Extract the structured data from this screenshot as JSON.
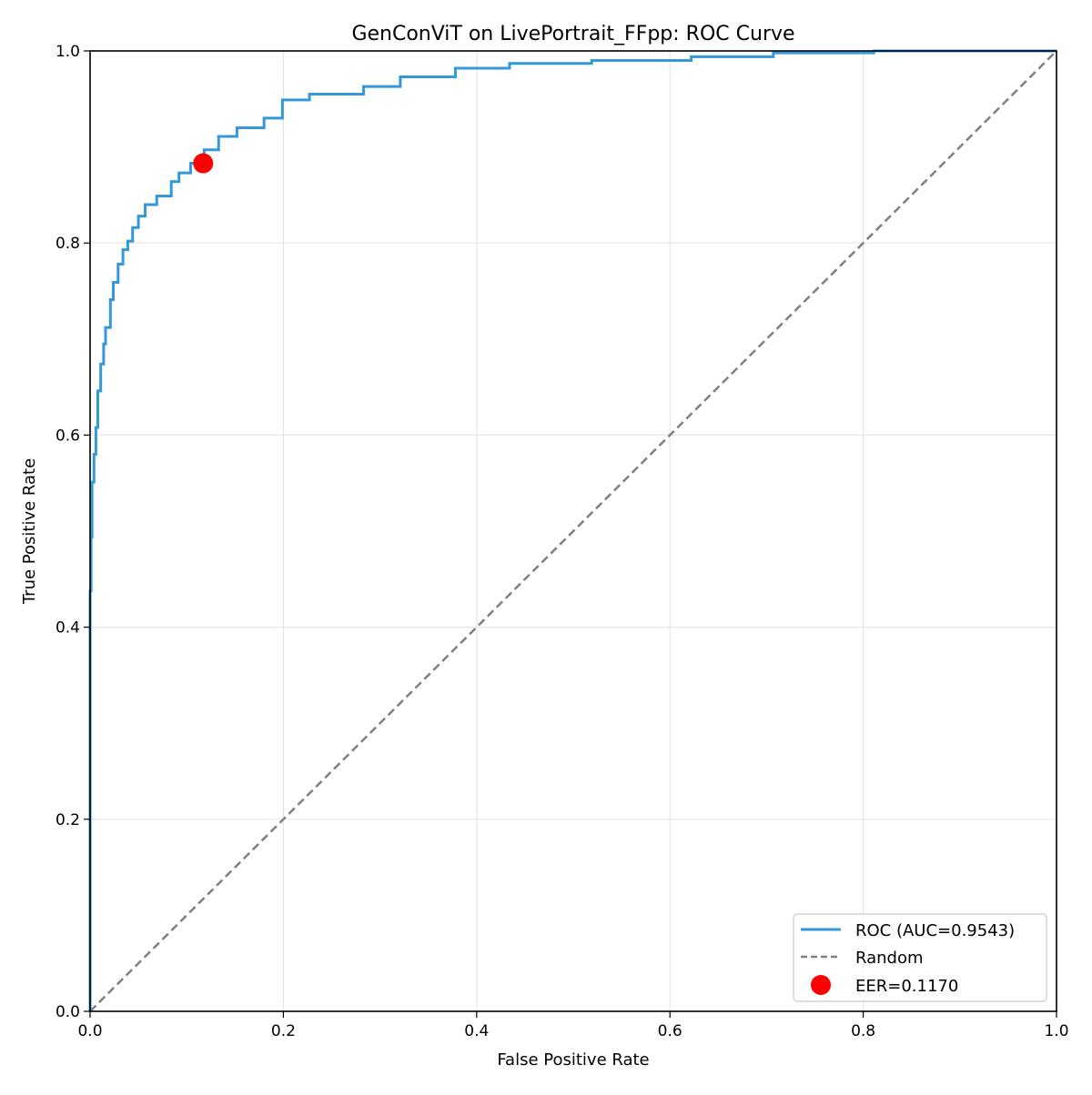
{
  "chart_data": {
    "type": "line",
    "title": "GenConViT on LivePortrait_FFpp: ROC Curve",
    "xlabel": "False Positive Rate",
    "ylabel": "True Positive Rate",
    "xlim": [
      0,
      1
    ],
    "ylim": [
      0,
      1
    ],
    "xticks": [
      "0.0",
      "0.2",
      "0.4",
      "0.6",
      "0.8",
      "1.0"
    ],
    "yticks": [
      "0.0",
      "0.2",
      "0.4",
      "0.6",
      "0.8",
      "1.0"
    ],
    "grid": true,
    "legend_position": "lower-right",
    "series": [
      {
        "name": "ROC (AUC=0.9543)",
        "style": "solid",
        "color": "#3498db",
        "x": [
          0,
          0.001,
          0.002,
          0.004,
          0.006,
          0.008,
          0.011,
          0.014,
          0.016,
          0.021,
          0.024,
          0.029,
          0.034,
          0.039,
          0.044,
          0.05,
          0.057,
          0.069,
          0.084,
          0.092,
          0.104,
          0.118,
          0.133,
          0.152,
          0.18,
          0.199,
          0.227,
          0.283,
          0.321,
          0.378,
          0.434,
          0.519,
          0.622,
          0.707,
          0.811,
          0.96,
          1.0
        ],
        "y": [
          0,
          0.4375,
          0.494,
          0.551,
          0.58,
          0.608,
          0.646,
          0.674,
          0.695,
          0.712,
          0.741,
          0.759,
          0.778,
          0.793,
          0.802,
          0.816,
          0.828,
          0.84,
          0.849,
          0.864,
          0.873,
          0.883,
          0.897,
          0.911,
          0.92,
          0.93,
          0.949,
          0.955,
          0.963,
          0.973,
          0.982,
          0.987,
          0.99,
          0.994,
          0.998,
          1.0,
          1.0
        ]
      },
      {
        "name": "Random",
        "style": "dashed",
        "color": "#808080",
        "x": [
          0,
          1
        ],
        "y": [
          0,
          1
        ]
      }
    ],
    "points": [
      {
        "name": "EER=0.1170",
        "color": "#ff0000",
        "x": 0.117,
        "y": 0.883
      }
    ]
  }
}
